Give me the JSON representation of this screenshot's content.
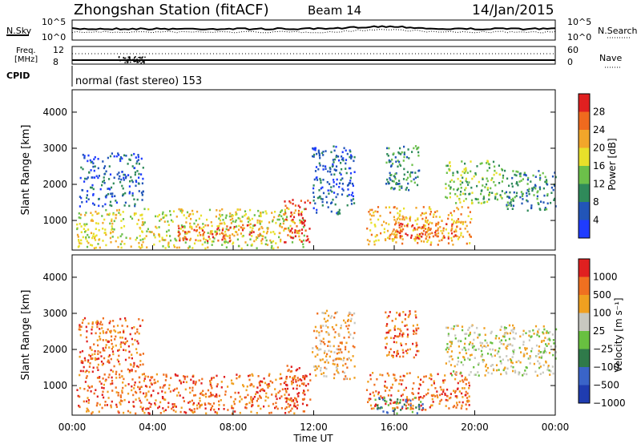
{
  "header": {
    "station": "Zhongshan Station (fitACF)",
    "beam": "Beam 14",
    "date": "14/Jan/2015"
  },
  "top_panels": {
    "nsky_label": "N.Sky",
    "nsearch_label": "N.Search",
    "noise_ticks": [
      "10^5",
      "10^0"
    ],
    "freq_label_1": "Freq.",
    "freq_label_2": "[MHz]",
    "freq_ticks": [
      "12",
      "8"
    ],
    "nave_label": "Nave",
    "nave_ticks": [
      "60",
      "0"
    ],
    "cpid_label": "CPID",
    "cpid_text": "normal (fast stereo) 153"
  },
  "chart_data": [
    {
      "type": "heatmap",
      "name": "power",
      "ylabel": "Slant Range [km]",
      "yticks": [
        1000,
        2000,
        3000,
        4000
      ],
      "ylim": [
        180,
        4620
      ],
      "xlim_hours": [
        0,
        24
      ],
      "colorbar": {
        "label": "Power [dB]",
        "ticks": [
          "4",
          "8",
          "12",
          "16",
          "20",
          "24",
          "28"
        ],
        "colors": [
          "#1f3cff",
          "#2255b8",
          "#2f8a5a",
          "#6cc04a",
          "#e8e02a",
          "#f2a62a",
          "#f06a1e",
          "#e02020"
        ]
      },
      "regions": [
        {
          "t0": 0.2,
          "t1": 11.5,
          "r0": 250,
          "r1": 1350,
          "level": 4
        },
        {
          "t0": 5.2,
          "t1": 9.5,
          "r0": 450,
          "r1": 900,
          "level": 6
        },
        {
          "t0": 10.5,
          "t1": 11.8,
          "r0": 400,
          "r1": 1600,
          "level": 7
        },
        {
          "t0": 14.6,
          "t1": 19.8,
          "r0": 350,
          "r1": 1400,
          "level": 5
        },
        {
          "t0": 15.8,
          "t1": 19.2,
          "r0": 500,
          "r1": 950,
          "level": 6
        },
        {
          "t0": 18.5,
          "t1": 21.5,
          "r0": 1500,
          "r1": 2700,
          "level": 3
        },
        {
          "t0": 21.5,
          "t1": 24,
          "r0": 1300,
          "r1": 2400,
          "level": 2
        },
        {
          "t0": 11.9,
          "t1": 14,
          "r0": 1200,
          "r1": 3100,
          "level": 1
        },
        {
          "t0": 0.3,
          "t1": 3.5,
          "r0": 1400,
          "r1": 2900,
          "level": 1
        },
        {
          "t0": 15.5,
          "t1": 17.2,
          "r0": 1800,
          "r1": 3100,
          "level": 2
        }
      ]
    },
    {
      "type": "heatmap",
      "name": "velocity",
      "ylabel": "Slant Range [km]",
      "yticks": [
        1000,
        2000,
        3000,
        4000
      ],
      "ylim": [
        180,
        4620
      ],
      "xlim_hours": [
        0,
        24
      ],
      "xticks": [
        "00:00",
        "04:00",
        "08:00",
        "12:00",
        "16:00",
        "20:00",
        "00:00"
      ],
      "xlabel": "Time UT",
      "colorbar": {
        "label": "Velocity [m s⁻¹]",
        "ticks": [
          "1000",
          "500",
          "100",
          "25",
          "−25",
          "−100",
          "−500",
          "−1000"
        ],
        "colors": [
          "#1f3cb0",
          "#3a64c8",
          "#2f7a4a",
          "#68c040",
          "#c8c8c0",
          "#f0a020",
          "#f07020",
          "#e02020"
        ]
      },
      "regions": [
        {
          "t0": 0.2,
          "t1": 11.5,
          "r0": 250,
          "r1": 1350,
          "level": 6
        },
        {
          "t0": 10.5,
          "t1": 11.8,
          "r0": 400,
          "r1": 1600,
          "level": 7
        },
        {
          "t0": 14.6,
          "t1": 19.8,
          "r0": 350,
          "r1": 1400,
          "level": 6
        },
        {
          "t0": 15,
          "t1": 17.5,
          "r0": 250,
          "r1": 700,
          "level": 2
        },
        {
          "t0": 18.5,
          "t1": 24,
          "r0": 1300,
          "r1": 2700,
          "level": 4
        },
        {
          "t0": 11.9,
          "t1": 14,
          "r0": 1200,
          "r1": 3100,
          "level": 5
        },
        {
          "t0": 0.3,
          "t1": 3.5,
          "r0": 1400,
          "r1": 2900,
          "level": 6
        },
        {
          "t0": 15.5,
          "t1": 17.2,
          "r0": 1800,
          "r1": 3100,
          "level": 6
        }
      ]
    }
  ]
}
